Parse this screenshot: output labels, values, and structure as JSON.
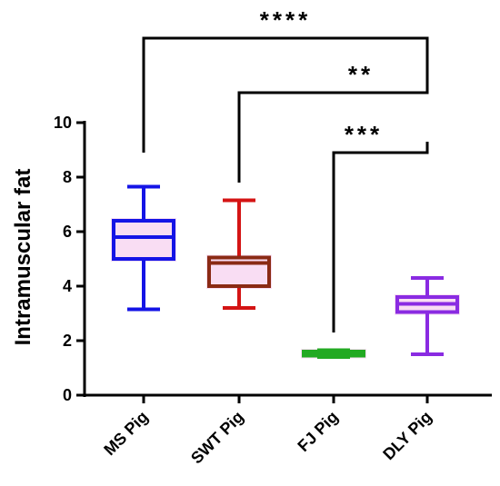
{
  "chart_data": {
    "type": "boxplot",
    "title": "",
    "xlabel": "",
    "ylabel": "Intramuscular fat",
    "ylim": [
      0,
      10
    ],
    "yticks": [
      0,
      2,
      4,
      6,
      8,
      10
    ],
    "grid": false,
    "legend": "none",
    "categories": [
      "MS Pig",
      "SWT Pig",
      "FJ Pig",
      "DLY Pig"
    ],
    "boxes": [
      {
        "category": "MS Pig",
        "min": 3.15,
        "q1": 5.0,
        "median": 5.8,
        "q3": 6.4,
        "max": 7.65,
        "color": "#1414e6"
      },
      {
        "category": "SWT Pig",
        "min": 3.2,
        "q1": 4.0,
        "median": 4.85,
        "q3": 5.05,
        "max": 7.15,
        "color": "#8a2a14"
      },
      {
        "category": "FJ Pig",
        "min": 1.4,
        "q1": 1.45,
        "median": 1.55,
        "q3": 1.6,
        "max": 1.65,
        "color": "#22aa22"
      },
      {
        "category": "DLY Pig",
        "min": 1.5,
        "q1": 3.05,
        "median": 3.35,
        "q3": 3.6,
        "max": 4.3,
        "color": "#8a2be2"
      }
    ],
    "whisker_colors": [
      "#1414e6",
      "#d41414",
      "#22aa22",
      "#8a2be2"
    ],
    "significance": [
      {
        "from": "MS Pig",
        "to": "DLY Pig",
        "label": "****",
        "from_y": 8.9,
        "to_y": 11.5,
        "level": 13.1
      },
      {
        "from": "SWT Pig",
        "to": "DLY Pig",
        "label": "**",
        "from_y": 7.8,
        "to_y": 11.5,
        "level": 11.1
      },
      {
        "from": "FJ Pig",
        "to": "DLY Pig",
        "label": "***",
        "from_y": 2.3,
        "to_y": 9.3,
        "level": 8.9
      }
    ]
  }
}
